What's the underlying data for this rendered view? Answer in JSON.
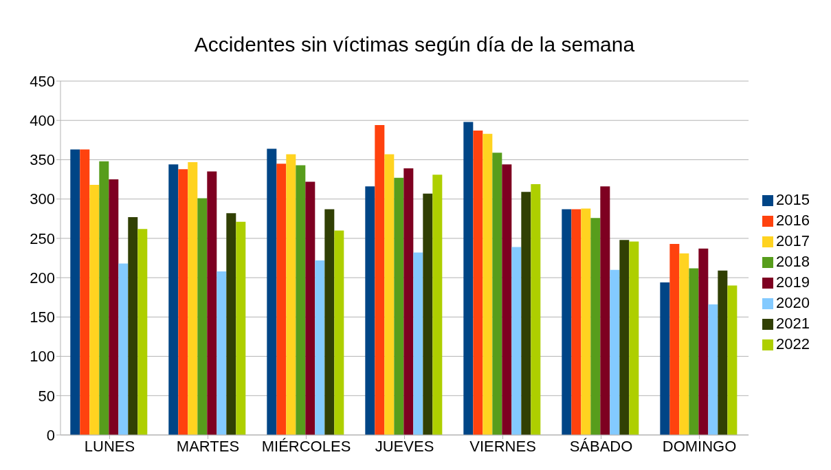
{
  "chart_data": {
    "type": "bar",
    "title": "Accidentes sin víctimas según día de la semana",
    "categories": [
      "LUNES",
      "MARTES",
      "MIÉRCOLES",
      "JUEVES",
      "VIERNES",
      "SÁBADO",
      "DOMINGO"
    ],
    "series": [
      {
        "name": "2015",
        "color": "#004586",
        "values": [
          363,
          344,
          364,
          316,
          398,
          287,
          194
        ]
      },
      {
        "name": "2016",
        "color": "#ff420e",
        "values": [
          363,
          338,
          345,
          394,
          387,
          287,
          243
        ]
      },
      {
        "name": "2017",
        "color": "#ffd320",
        "values": [
          318,
          347,
          357,
          357,
          383,
          288,
          231
        ]
      },
      {
        "name": "2018",
        "color": "#579d1c",
        "values": [
          348,
          301,
          343,
          327,
          359,
          276,
          212
        ]
      },
      {
        "name": "2019",
        "color": "#7e0021",
        "values": [
          325,
          335,
          322,
          339,
          344,
          316,
          237
        ]
      },
      {
        "name": "2020",
        "color": "#83caff",
        "values": [
          218,
          208,
          222,
          232,
          239,
          210,
          166
        ]
      },
      {
        "name": "2021",
        "color": "#314004",
        "values": [
          277,
          282,
          287,
          307,
          309,
          248,
          209
        ]
      },
      {
        "name": "2022",
        "color": "#aecf00",
        "values": [
          262,
          271,
          260,
          331,
          319,
          246,
          190
        ]
      }
    ],
    "ylim": [
      0,
      450
    ],
    "yticks": [
      0,
      50,
      100,
      150,
      200,
      250,
      300,
      350,
      400,
      450
    ],
    "grid": "y",
    "legend": "right"
  }
}
